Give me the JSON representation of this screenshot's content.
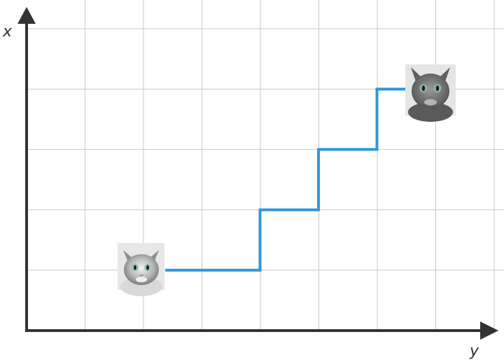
{
  "axes": {
    "vertical_label": "x",
    "horizontal_label": "y"
  },
  "grid": {
    "visible": true,
    "color": "#c8c8c8"
  },
  "axis_color": "#333333",
  "path": {
    "color": "#2f97dd",
    "steps": [
      [
        1,
        1
      ],
      [
        2,
        1
      ],
      [
        2,
        2
      ],
      [
        3,
        2
      ],
      [
        3,
        3
      ],
      [
        4,
        3
      ],
      [
        4,
        4
      ]
    ]
  },
  "images": {
    "start": "cat-photo",
    "end": "cat-photo"
  }
}
